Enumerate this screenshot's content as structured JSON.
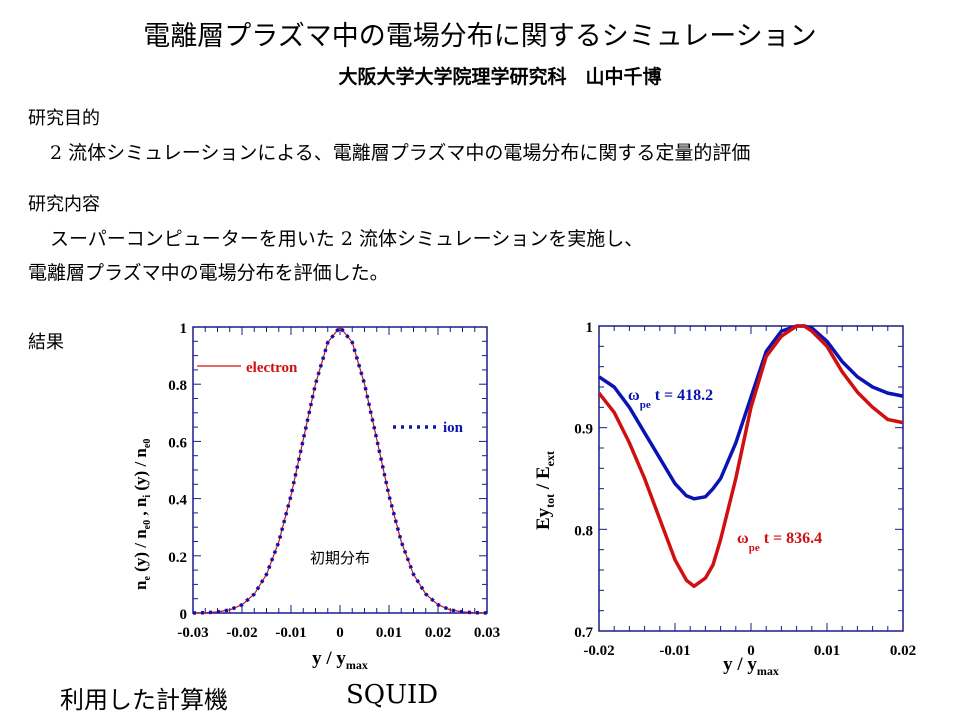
{
  "title": "電離層プラズマ中の電場分布に関するシミュレーション",
  "subtitle": "大阪大学大学院理学研究科　山中千博",
  "purpose": {
    "heading": "研究目的",
    "text": "2 流体シミュレーションによる、電離層プラズマ中の電場分布に関する定量的評価"
  },
  "content": {
    "heading": "研究内容",
    "line1": "スーパーコンピューターを用いた 2 流体シミュレーションを実施し、",
    "line2": "電離層プラズマ中の電場分布を評価した。"
  },
  "results": {
    "heading": "結果"
  },
  "computer": {
    "label": "利用した計算機",
    "name": "SQUID"
  },
  "colors": {
    "red": "#d01010",
    "blue": "#0a14b4",
    "axis": "#1a1a8c"
  },
  "chart_data": [
    {
      "type": "line",
      "title": "",
      "xlabel": "y / y_max",
      "ylabel": "n_e(y) / n_e0 , n_i(y) / n_e0",
      "xlim": [
        -0.03,
        0.03
      ],
      "ylim": [
        0,
        1
      ],
      "xticks": [
        "-0.03",
        "-0.02",
        "-0.01",
        "0",
        "0.01",
        "0.02",
        "0.03"
      ],
      "yticks": [
        "0",
        "0.2",
        "0.4",
        "0.6",
        "0.8",
        "1"
      ],
      "annotation": "初期分布",
      "legend_placement": "inside",
      "x": [
        -0.03,
        -0.0275,
        -0.025,
        -0.0225,
        -0.02,
        -0.0175,
        -0.015,
        -0.0125,
        -0.01,
        -0.0075,
        -0.005,
        -0.0025,
        0,
        0.0025,
        0.005,
        0.0075,
        0.01,
        0.0125,
        0.015,
        0.0175,
        0.02,
        0.0225,
        0.025,
        0.0275,
        0.03
      ],
      "series": [
        {
          "name": "electron",
          "style": "solid",
          "values": [
            0,
            0.001,
            0.004,
            0.011,
            0.029,
            0.066,
            0.135,
            0.249,
            0.411,
            0.607,
            0.801,
            0.946,
            1,
            0.946,
            0.801,
            0.607,
            0.411,
            0.249,
            0.135,
            0.066,
            0.029,
            0.011,
            0.004,
            0.001,
            0
          ]
        },
        {
          "name": "ion",
          "style": "dotted",
          "values": [
            0,
            0.001,
            0.004,
            0.011,
            0.029,
            0.066,
            0.135,
            0.249,
            0.411,
            0.607,
            0.801,
            0.946,
            1,
            0.946,
            0.801,
            0.607,
            0.411,
            0.249,
            0.135,
            0.066,
            0.029,
            0.011,
            0.004,
            0.001,
            0
          ]
        }
      ]
    },
    {
      "type": "line",
      "title": "",
      "xlabel": "y / y_max",
      "ylabel": "Ey_tot / E_ext",
      "xlim": [
        -0.02,
        0.02
      ],
      "ylim": [
        0.7,
        1
      ],
      "xticks": [
        "-0.02",
        "-0.01",
        "0",
        "0.01",
        "0.02"
      ],
      "yticks": [
        "0.7",
        "0.8",
        "0.9",
        "1"
      ],
      "series": [
        {
          "name": "ω_pe t = 418.2",
          "label_main": "ω",
          "label_sub": "pe",
          "label_rest": "t = 418.2",
          "x": [
            -0.02,
            -0.018,
            -0.016,
            -0.014,
            -0.012,
            -0.01,
            -0.0085,
            -0.0075,
            -0.006,
            -0.005,
            -0.004,
            -0.002,
            0,
            0.002,
            0.004,
            0.006,
            0.007,
            0.008,
            0.01,
            0.012,
            0.014,
            0.016,
            0.018,
            0.02
          ],
          "values": [
            0.95,
            0.94,
            0.92,
            0.895,
            0.87,
            0.845,
            0.833,
            0.83,
            0.832,
            0.84,
            0.85,
            0.885,
            0.93,
            0.975,
            0.995,
            1.0,
            1.0,
            0.998,
            0.985,
            0.965,
            0.95,
            0.94,
            0.934,
            0.931
          ]
        },
        {
          "name": "ω_pe t = 836.4",
          "label_main": "ω",
          "label_sub": "pe",
          "label_rest": "t = 836.4",
          "x": [
            -0.02,
            -0.018,
            -0.016,
            -0.014,
            -0.012,
            -0.01,
            -0.0085,
            -0.0075,
            -0.006,
            -0.005,
            -0.004,
            -0.002,
            0,
            0.002,
            0.004,
            0.006,
            0.007,
            0.008,
            0.01,
            0.012,
            0.014,
            0.016,
            0.018,
            0.02
          ],
          "values": [
            0.934,
            0.915,
            0.885,
            0.85,
            0.81,
            0.77,
            0.75,
            0.744,
            0.752,
            0.765,
            0.79,
            0.85,
            0.92,
            0.97,
            0.99,
            1.0,
            1.0,
            0.995,
            0.98,
            0.955,
            0.935,
            0.92,
            0.908,
            0.905
          ]
        }
      ]
    }
  ]
}
